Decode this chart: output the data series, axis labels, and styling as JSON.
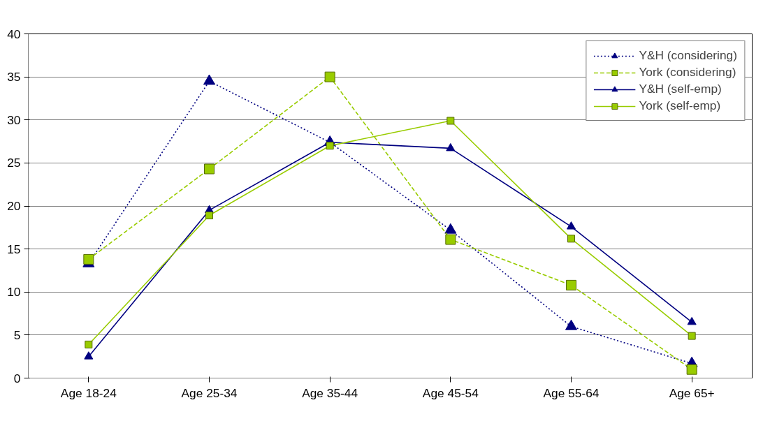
{
  "chart_data": {
    "type": "line",
    "categories": [
      "Age 18-24",
      "Age 25-34",
      "Age 35-44",
      "Age 45-54",
      "Age 55-64",
      "Age 65+"
    ],
    "series": [
      {
        "name": "Y&H (considering)",
        "color": "#000080",
        "marker": "triangle",
        "line_style": "dotted",
        "values": [
          13.3,
          34.5,
          27.4,
          17.2,
          6.0,
          1.7
        ]
      },
      {
        "name": "York (considering)",
        "color": "#99cc00",
        "marker": "square",
        "line_style": "dashed",
        "values": [
          13.8,
          24.3,
          35.0,
          16.1,
          10.8,
          1.0
        ]
      },
      {
        "name": "Y&H (self-emp)",
        "color": "#000080",
        "marker": "triangle",
        "line_style": "solid",
        "values": [
          2.5,
          19.5,
          27.4,
          26.7,
          17.6,
          6.5
        ]
      },
      {
        "name": "York (self-emp)",
        "color": "#99cc00",
        "marker": "square",
        "line_style": "solid",
        "values": [
          3.9,
          18.9,
          27.0,
          29.9,
          16.2,
          4.9
        ]
      }
    ],
    "ylim": [
      0,
      40
    ],
    "yticks": [
      0,
      5,
      10,
      15,
      20,
      25,
      30,
      35,
      40
    ],
    "grid": "y",
    "legend": "top right"
  }
}
